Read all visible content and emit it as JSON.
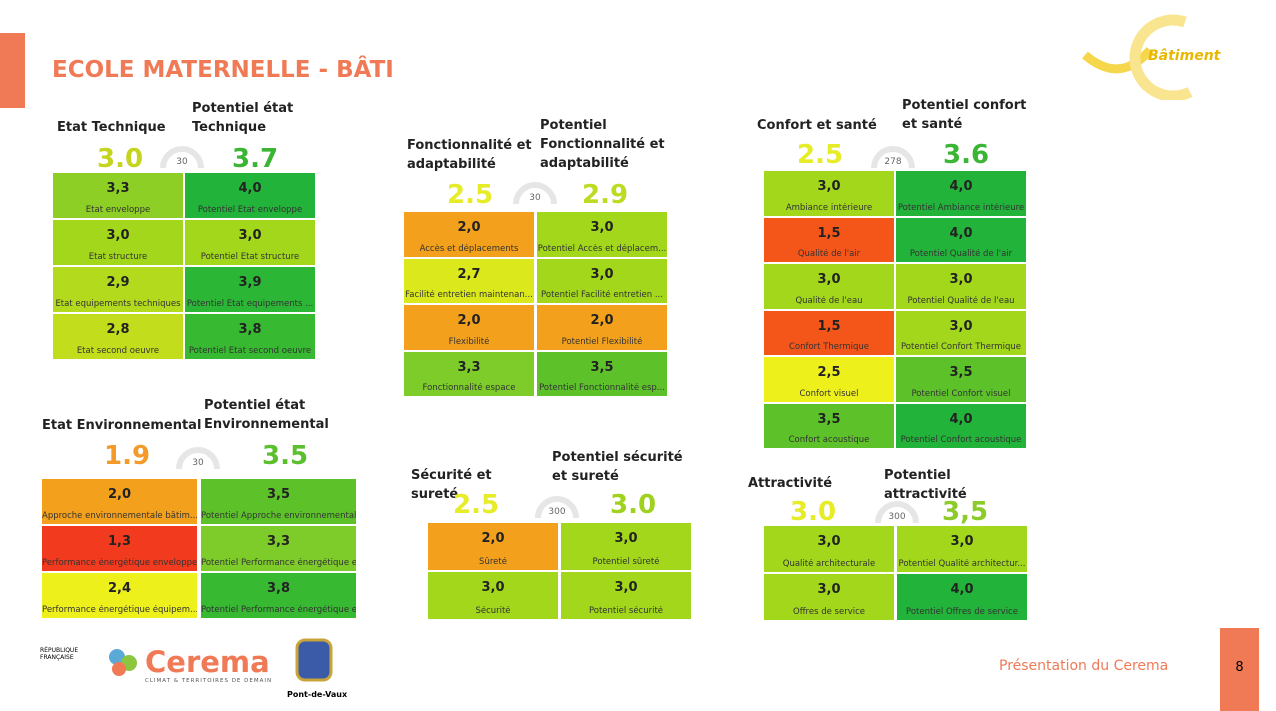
{
  "header": {
    "title": "ECOLE MATERNELLE - BÂTI",
    "logo_text": "Bâtiment"
  },
  "panels": [
    {
      "left_title": "Etat Technique",
      "left_score": "3.0",
      "left_score_color": "#c5d51f",
      "gauge_label": "30",
      "right_title": "Potentiel état Technique",
      "right_score": "3.7",
      "right_score_color": "#3bb534",
      "left_cells": [
        {
          "value": "3,3",
          "label": "Etat enveloppe",
          "color": "#8dcf24"
        },
        {
          "value": "3,0",
          "label": "Etat structure",
          "color": "#a2d71c"
        },
        {
          "value": "2,9",
          "label": "Etat equipements techniques",
          "color": "#b3da1c"
        },
        {
          "value": "2,8",
          "label": "Etat second oeuvre",
          "color": "#c2dd1c"
        }
      ],
      "right_cells": [
        {
          "value": "4,0",
          "label": "Potentiel Etat enveloppe",
          "color": "#22b33a"
        },
        {
          "value": "3,0",
          "label": "Potentiel Etat structure",
          "color": "#a2d71c"
        },
        {
          "value": "3,9",
          "label": "Potentiel Etat equipements ...",
          "color": "#2cb636"
        },
        {
          "value": "3,8",
          "label": "Potentiel Etat second oeuvre",
          "color": "#38b932"
        }
      ]
    },
    {
      "left_title": "Fonctionnalité et adaptabilité",
      "left_score": "2.5",
      "left_score_color": "#e6ec28",
      "gauge_label": "30",
      "right_title": "Potentiel Fonctionnalité et adaptabilité",
      "right_score": "2.9",
      "right_score_color": "#bcdc22",
      "left_cells": [
        {
          "value": "2,0",
          "label": "Accès et déplacements",
          "color": "#f3a11c"
        },
        {
          "value": "2,7",
          "label": "Facilité entretien maintenan...",
          "color": "#dbe81c"
        },
        {
          "value": "2,0",
          "label": "Flexibilité",
          "color": "#f3a11c"
        },
        {
          "value": "3,3",
          "label": "Fonctionnalité espace",
          "color": "#7dcc2a"
        }
      ],
      "right_cells": [
        {
          "value": "3,0",
          "label": "Potentiel Accès et déplacem...",
          "color": "#a2d71c"
        },
        {
          "value": "3,0",
          "label": "Potentiel Facilité entretien ...",
          "color": "#a2d71c"
        },
        {
          "value": "2,0",
          "label": "Potentiel Flexibilité",
          "color": "#f3a11c"
        },
        {
          "value": "3,5",
          "label": "Potentiel Fonctionnalité esp...",
          "color": "#5dc22a"
        }
      ]
    },
    {
      "left_title": "Confort et santé",
      "left_score": "2.5",
      "left_score_color": "#e6ec28",
      "gauge_label": "278",
      "right_title": "Potentiel confort et santé",
      "right_score": "3.6",
      "right_score_color": "#3bb534",
      "left_cells": [
        {
          "value": "3,0",
          "label": "Ambiance intérieure",
          "color": "#a2d71c"
        },
        {
          "value": "1,5",
          "label": "Qualité de l'air",
          "color": "#f4561a"
        },
        {
          "value": "3,0",
          "label": "Qualité de l'eau",
          "color": "#a2d71c"
        },
        {
          "value": "1,5",
          "label": "Confort Thermique",
          "color": "#f4561a"
        },
        {
          "value": "2,5",
          "label": "Confort visuel",
          "color": "#eef01c"
        },
        {
          "value": "3,5",
          "label": "Confort acoustique",
          "color": "#5dc22a"
        }
      ],
      "right_cells": [
        {
          "value": "4,0",
          "label": "Potentiel Ambiance intérieure",
          "color": "#22b33a"
        },
        {
          "value": "4,0",
          "label": "Potentiel Qualité de l'air",
          "color": "#22b33a"
        },
        {
          "value": "3,0",
          "label": "Potentiel Qualité de l'eau",
          "color": "#a2d71c"
        },
        {
          "value": "3,0",
          "label": "Potentiel Confort Thermique",
          "color": "#a2d71c"
        },
        {
          "value": "3,5",
          "label": "Potentiel Confort visuel",
          "color": "#5dc22a"
        },
        {
          "value": "4,0",
          "label": "Potentiel Confort acoustique",
          "color": "#22b33a"
        }
      ]
    },
    {
      "left_title": "Etat Environnemental",
      "left_score": "1.9",
      "left_score_color": "#f39a2a",
      "gauge_label": "30",
      "right_title": "Potentiel état Environnemental",
      "right_score": "3.5",
      "right_score_color": "#5cbf2e",
      "left_cells": [
        {
          "value": "2,0",
          "label": "Approche environnementale bâtim...",
          "color": "#f3a11c"
        },
        {
          "value": "1,3",
          "label": "Performance énergétique enveloppe",
          "color": "#f23a1e"
        },
        {
          "value": "2,4",
          "label": "Performance énergétique équipem...",
          "color": "#eef01c"
        }
      ],
      "right_cells": [
        {
          "value": "3,5",
          "label": "Potentiel Approche environnemental...",
          "color": "#5dc22a"
        },
        {
          "value": "3,3",
          "label": "Potentiel Performance énergétique e...",
          "color": "#7dcc2a"
        },
        {
          "value": "3,8",
          "label": "Potentiel Performance énergétique e...",
          "color": "#38b932"
        }
      ]
    },
    {
      "left_title": "Sécurité et sureté",
      "left_score": "2.5",
      "left_score_color": "#e6ec28",
      "gauge_label": "300",
      "right_title": "Potentiel sécurité et sureté",
      "right_score": "3.0",
      "right_score_color": "#9fd21e",
      "left_cells": [
        {
          "value": "2,0",
          "label": "Sûreté",
          "color": "#f3a11c"
        },
        {
          "value": "3,0",
          "label": "Sécurité",
          "color": "#a2d71c"
        }
      ],
      "right_cells": [
        {
          "value": "3,0",
          "label": "Potentiel sûreté",
          "color": "#a2d71c"
        },
        {
          "value": "3,0",
          "label": "Potentiel sécurité",
          "color": "#a2d71c"
        }
      ]
    },
    {
      "left_title": "Attractivité",
      "left_score": "3.0",
      "left_score_color": "#e6ec28",
      "gauge_label": "300",
      "right_title": "Potentiel attractivité",
      "right_score": "3,5",
      "right_score_color": "#8ccb2a",
      "left_cells": [
        {
          "value": "3,0",
          "label": "Qualité architecturale",
          "color": "#a2d71c"
        },
        {
          "value": "3,0",
          "label": "Offres de service",
          "color": "#a2d71c"
        }
      ],
      "right_cells": [
        {
          "value": "3,0",
          "label": "Potentiel Qualité architectur...",
          "color": "#a2d71c"
        },
        {
          "value": "4,0",
          "label": "Potentiel Offres de service",
          "color": "#22b33a"
        }
      ]
    }
  ],
  "footer": {
    "presentation": "Présentation du Cerema",
    "page": "8",
    "cerema": "Cerema",
    "cerema_tagline": "CLIMAT & TERRITOIRES DE DEMAIN",
    "republique": "RÉPUBLIQUE FRANÇAISE",
    "pont_de_vaux": "Pont-de-Vaux"
  }
}
